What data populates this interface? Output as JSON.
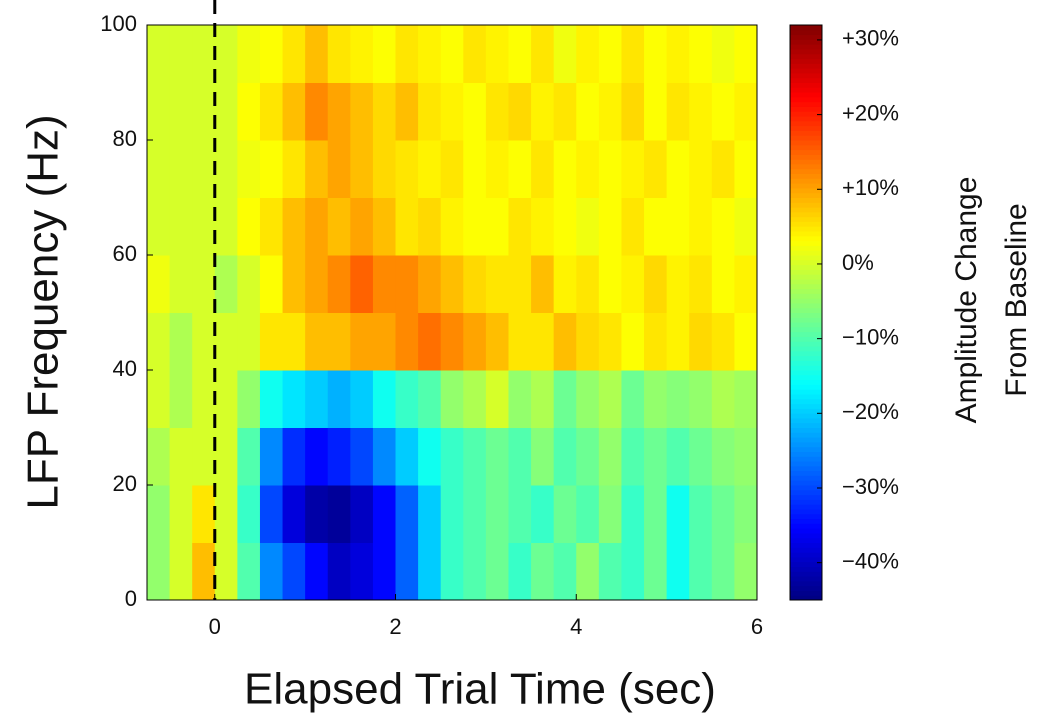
{
  "chart_data": {
    "type": "heatmap",
    "colormap": "jet",
    "xlabel": "Elapsed Trial Time (sec)",
    "ylabel": "LFP Frequency (Hz)",
    "colorbar_label": [
      "Amplitude Change",
      "From Baseline"
    ],
    "xlim": [
      -0.75,
      6
    ],
    "ylim": [
      0,
      100
    ],
    "xticks": [
      0,
      2,
      4,
      6
    ],
    "yticks": [
      0,
      20,
      40,
      60,
      80,
      100
    ],
    "vline": 0,
    "clim": [
      -45,
      32
    ],
    "cticks": [
      {
        "value": 30,
        "label": "+30%"
      },
      {
        "value": 20,
        "label": "+20%"
      },
      {
        "value": 10,
        "label": "+10%"
      },
      {
        "value": 0,
        "label": "0%"
      },
      {
        "value": -10,
        "label": "−10%"
      },
      {
        "value": -20,
        "label": "−20%"
      },
      {
        "value": -30,
        "label": "−30%"
      },
      {
        "value": -40,
        "label": "−40%"
      }
    ],
    "values": [
      [
        -5,
        0,
        8,
        0,
        -10,
        -25,
        -30,
        -35,
        -40,
        -38,
        -35,
        -28,
        -20,
        -12,
        -10,
        -8,
        -12,
        -8,
        -10,
        -5,
        -10,
        -12,
        -8,
        -15,
        -10,
        -8,
        -5
      ],
      [
        -5,
        0,
        5,
        0,
        -12,
        -30,
        -38,
        -42,
        -43,
        -40,
        -35,
        -28,
        -20,
        -12,
        -10,
        -8,
        -10,
        -12,
        -8,
        -10,
        -6,
        -12,
        -8,
        -15,
        -10,
        -8,
        -6
      ],
      [
        -3,
        0,
        0,
        0,
        -10,
        -25,
        -32,
        -35,
        -33,
        -30,
        -25,
        -20,
        -15,
        -12,
        -10,
        -8,
        -10,
        -6,
        -10,
        -8,
        -5,
        -10,
        -8,
        -10,
        -8,
        -6,
        -5
      ],
      [
        0,
        -3,
        0,
        0,
        -5,
        -15,
        -18,
        -20,
        -22,
        -20,
        -15,
        -12,
        -10,
        -5,
        -3,
        0,
        -5,
        -3,
        -8,
        -5,
        -3,
        -8,
        -5,
        -6,
        -5,
        -3,
        -4
      ],
      [
        0,
        -3,
        0,
        0,
        0,
        5,
        5,
        8,
        8,
        10,
        10,
        12,
        14,
        12,
        10,
        8,
        5,
        5,
        8,
        6,
        5,
        3,
        5,
        4,
        6,
        5,
        3
      ],
      [
        2,
        0,
        0,
        -3,
        0,
        3,
        8,
        10,
        12,
        15,
        12,
        12,
        10,
        8,
        6,
        5,
        5,
        8,
        4,
        5,
        3,
        4,
        6,
        4,
        5,
        3,
        4
      ],
      [
        0,
        0,
        0,
        0,
        3,
        5,
        8,
        10,
        8,
        10,
        8,
        5,
        6,
        4,
        3,
        3,
        5,
        4,
        3,
        2,
        3,
        5,
        3,
        3,
        4,
        3,
        2
      ],
      [
        0,
        0,
        0,
        0,
        2,
        3,
        5,
        8,
        10,
        8,
        6,
        5,
        4,
        5,
        3,
        4,
        3,
        5,
        3,
        4,
        3,
        4,
        5,
        3,
        4,
        5,
        3
      ],
      [
        0,
        0,
        0,
        0,
        3,
        5,
        8,
        12,
        10,
        8,
        6,
        8,
        5,
        4,
        3,
        5,
        6,
        4,
        5,
        3,
        4,
        6,
        3,
        5,
        4,
        3,
        4
      ],
      [
        0,
        0,
        0,
        0,
        2,
        3,
        5,
        8,
        5,
        4,
        3,
        5,
        4,
        3,
        5,
        4,
        3,
        5,
        2,
        4,
        3,
        5,
        3,
        4,
        3,
        2,
        3
      ]
    ]
  }
}
